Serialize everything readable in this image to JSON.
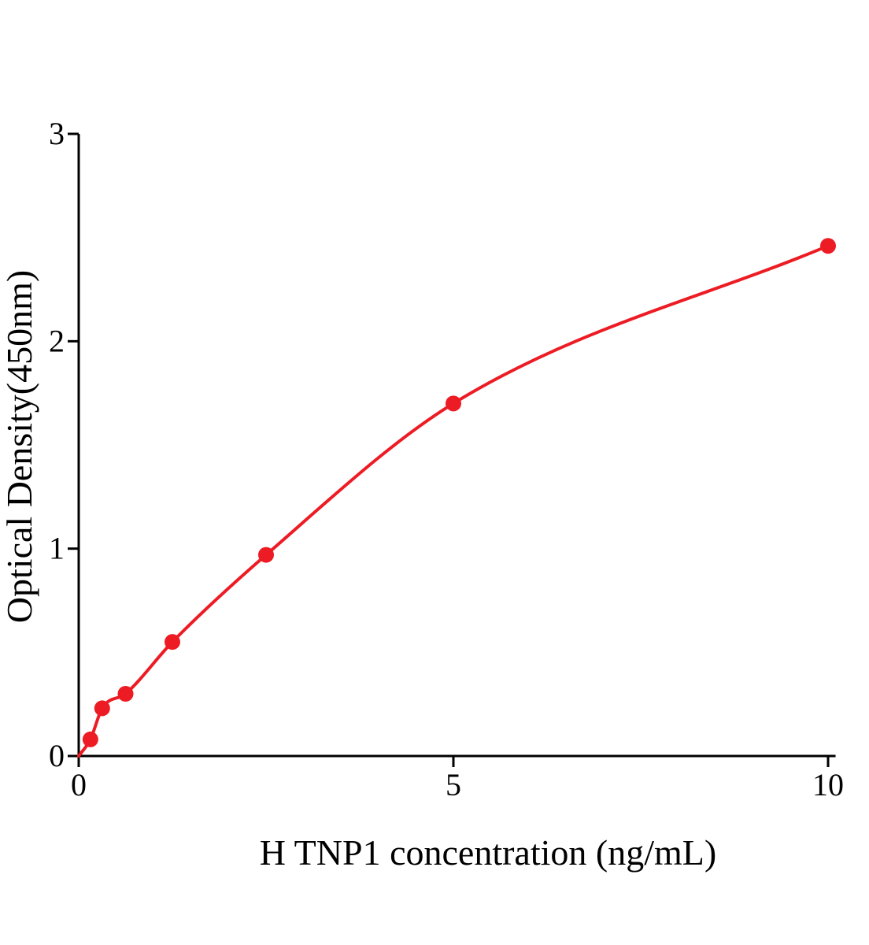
{
  "figure": {
    "background": "#ffffff"
  },
  "chart_data": {
    "type": "scatter",
    "subtype": "elisa-standard-curve-with-smooth-fit",
    "title": "",
    "xlabel": "H TNP1 concentration (ng/mL)",
    "ylabel": "Optical Density(450nm)",
    "x": [
      0.156,
      0.313,
      0.625,
      1.25,
      2.5,
      5,
      10
    ],
    "y": [
      0.08,
      0.23,
      0.3,
      0.55,
      0.97,
      1.7,
      2.46
    ],
    "fit_curve": {
      "smooth": true,
      "through_origin": true
    },
    "xlim": [
      0,
      10.1
    ],
    "ylim": [
      0,
      3
    ],
    "xticks": [
      "0",
      "5",
      "10"
    ],
    "xtick_values": [
      0,
      5,
      10
    ],
    "yticks": [
      "0",
      "1",
      "2",
      "3"
    ],
    "ytick_values": [
      0,
      1,
      2,
      3
    ],
    "grid": false,
    "legend": "none",
    "marker_shape": "circle",
    "marker_color": "#ed1c24",
    "line_color": "#ed1c24",
    "axis_color": "#000000"
  }
}
